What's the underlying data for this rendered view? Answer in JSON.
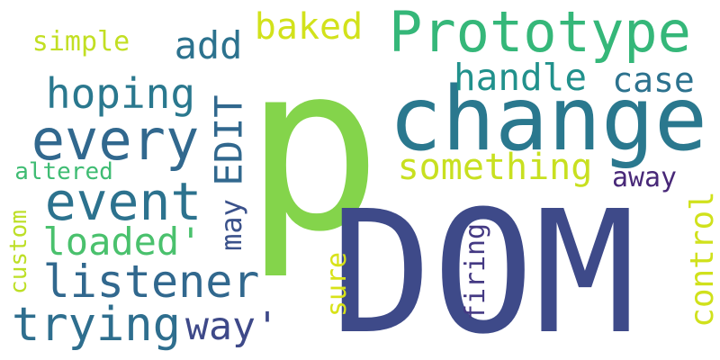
{
  "words": [
    {
      "id": "p",
      "text": "p",
      "color": "#84d44b",
      "rotated": false
    },
    {
      "id": "dom",
      "text": "DOM",
      "color": "#3e4a89",
      "rotated": false
    },
    {
      "id": "change",
      "text": "change",
      "color": "#2a788e",
      "rotated": false
    },
    {
      "id": "prototype",
      "text": "Prototype",
      "color": "#35b779",
      "rotated": false
    },
    {
      "id": "every",
      "text": "every",
      "color": "#31688e",
      "rotated": false
    },
    {
      "id": "event",
      "text": "event",
      "color": "#2c728e",
      "rotated": false
    },
    {
      "id": "listener",
      "text": "listener",
      "color": "#31688e",
      "rotated": false
    },
    {
      "id": "trying",
      "text": "trying",
      "color": "#2e6e8e",
      "rotated": false
    },
    {
      "id": "hoping",
      "text": "hoping",
      "color": "#2a788e",
      "rotated": false
    },
    {
      "id": "add",
      "text": "add",
      "color": "#2c728e",
      "rotated": false
    },
    {
      "id": "simple",
      "text": "simple",
      "color": "#c2df23",
      "rotated": false
    },
    {
      "id": "baked",
      "text": "baked",
      "color": "#d2e21b",
      "rotated": false
    },
    {
      "id": "handle",
      "text": "handle",
      "color": "#21918c",
      "rotated": false
    },
    {
      "id": "case",
      "text": "case",
      "color": "#2c728e",
      "rotated": false
    },
    {
      "id": "edit",
      "text": "EDIT",
      "color": "#31688e",
      "rotated": true
    },
    {
      "id": "may",
      "text": "may",
      "color": "#3b528b",
      "rotated": true
    },
    {
      "id": "something",
      "text": "something",
      "color": "#c8e020",
      "rotated": false
    },
    {
      "id": "away",
      "text": "away",
      "color": "#482878",
      "rotated": false
    },
    {
      "id": "altered",
      "text": "altered",
      "color": "#3fbc73",
      "rotated": false
    },
    {
      "id": "loaded",
      "text": "loaded'",
      "color": "#4ac16d",
      "rotated": false
    },
    {
      "id": "custom",
      "text": "custom",
      "color": "#bddf26",
      "rotated": true
    },
    {
      "id": "sure",
      "text": "sure",
      "color": "#d8e219",
      "rotated": true
    },
    {
      "id": "firing",
      "text": "firing",
      "color": "#443983",
      "rotated": true
    },
    {
      "id": "control",
      "text": "control",
      "color": "#d0e11c",
      "rotated": true
    },
    {
      "id": "way",
      "text": "way'",
      "color": "#3e4989",
      "rotated": false
    }
  ]
}
